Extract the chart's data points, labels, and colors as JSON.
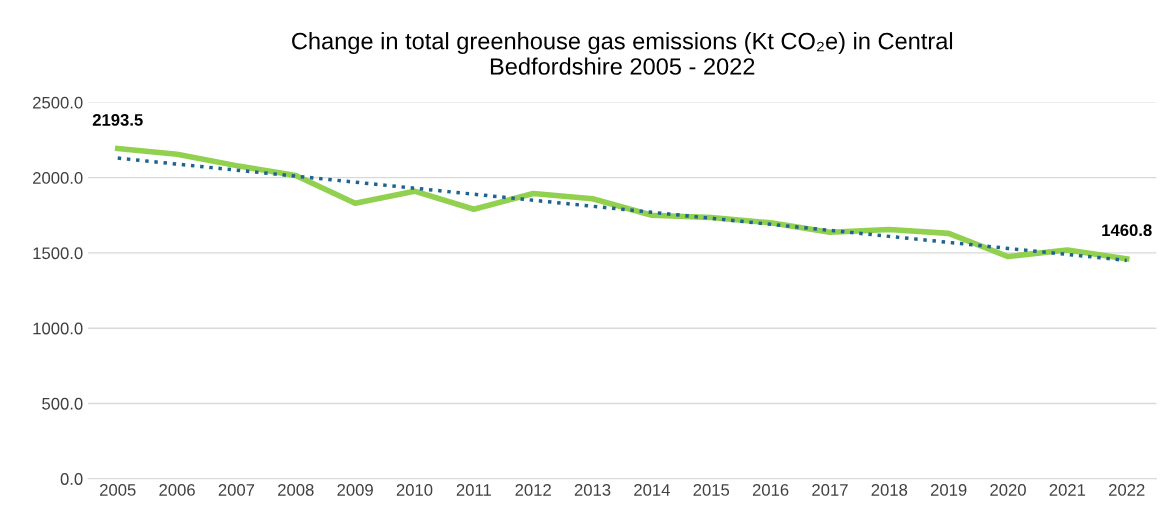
{
  "chart_data": {
    "type": "line",
    "title": "Change in total greenhouse gas emissions (Kt CO₂e) in Central\nBedfordshire 2005 - 2022",
    "categories": [
      "2005",
      "2006",
      "2007",
      "2008",
      "2009",
      "2010",
      "2011",
      "2012",
      "2013",
      "2014",
      "2015",
      "2016",
      "2017",
      "2018",
      "2019",
      "2020",
      "2021",
      "2022"
    ],
    "series": [
      {
        "type": "line",
        "color": "#92d050",
        "line_style": "solid",
        "values": [
          2193.5,
          2155,
          2080,
          2015,
          1830,
          1910,
          1790,
          1895,
          1860,
          1750,
          1736,
          1700,
          1637,
          1655,
          1630,
          1476,
          1520,
          1460.8
        ],
        "value_labels": [
          "2193.5",
          null,
          null,
          null,
          null,
          null,
          null,
          null,
          null,
          null,
          null,
          null,
          null,
          null,
          null,
          null,
          null,
          "1460.8"
        ]
      },
      {
        "type": "line",
        "color": "#1f6391",
        "line_style": "dotted",
        "values": [
          2130,
          2090,
          2050,
          2010,
          1970,
          1930,
          1890,
          1850,
          1810,
          1770,
          1730,
          1690,
          1650,
          1610,
          1570,
          1530,
          1490,
          1450
        ]
      }
    ],
    "ylim": [
      0,
      2500
    ],
    "yticks": [
      {
        "value": 0,
        "label": "0.0"
      },
      {
        "value": 500,
        "label": "500.0"
      },
      {
        "value": 1000,
        "label": "1000.0"
      },
      {
        "value": 1500,
        "label": "1500.0"
      },
      {
        "value": 2000,
        "label": "2000.0"
      },
      {
        "value": 2500,
        "label": "2500.0"
      }
    ],
    "grid": "y",
    "legend": false,
    "marker": "none"
  }
}
